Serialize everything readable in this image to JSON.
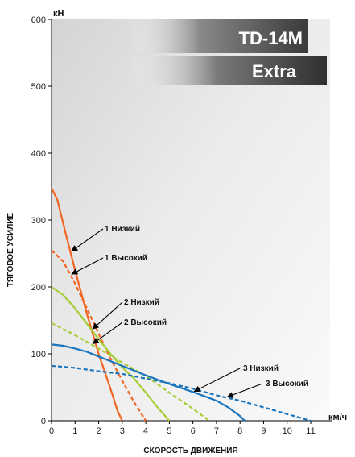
{
  "chart_data": {
    "type": "line",
    "title": "",
    "brand_lines": [
      "TD-14M",
      "Extra"
    ],
    "xlabel": "СКОРОСТЬ ДВИЖЕНИЯ",
    "ylabel": "ТЯГОВОЕ УСИЛИЕ",
    "x_unit": "км/ч",
    "y_unit": "кН",
    "xlim": [
      0,
      11
    ],
    "ylim": [
      0,
      600
    ],
    "x_ticks": [
      0,
      1,
      2,
      3,
      4,
      5,
      6,
      7,
      8,
      9,
      10,
      11
    ],
    "y_ticks": [
      0,
      100,
      200,
      300,
      400,
      500,
      600
    ],
    "grid": false,
    "series": [
      {
        "name": "1 Низкий",
        "color": "#f26522",
        "dashed": false,
        "x": [
          0,
          0.25,
          0.6,
          1.0,
          1.5,
          2.0,
          2.5,
          2.8,
          3.0
        ],
        "y": [
          348,
          330,
          280,
          225,
          160,
          100,
          48,
          15,
          0
        ]
      },
      {
        "name": "1 Высокий",
        "color": "#f26522",
        "dashed": true,
        "x": [
          0,
          0.5,
          1.0,
          1.5,
          2.0,
          2.5,
          3.0,
          3.5,
          4.0
        ],
        "y": [
          255,
          238,
          205,
          168,
          130,
          93,
          60,
          28,
          0
        ]
      },
      {
        "name": "2 Низкий",
        "color": "#a6ce39",
        "dashed": false,
        "x": [
          0,
          0.5,
          1.0,
          1.5,
          2.0,
          2.5,
          3.0,
          3.5,
          4.0,
          4.5,
          5.0
        ],
        "y": [
          200,
          188,
          168,
          145,
          122,
          100,
          80,
          63,
          42,
          20,
          0
        ]
      },
      {
        "name": "2 Высокий",
        "color": "#a6ce39",
        "dashed": true,
        "x": [
          0,
          1.0,
          2.0,
          3.0,
          4.0,
          5.0,
          6.0,
          6.7
        ],
        "y": [
          146,
          128,
          108,
          87,
          67,
          42,
          18,
          0
        ]
      },
      {
        "name": "3 Низкий",
        "color": "#1b75bc",
        "dashed": false,
        "x": [
          0,
          0.5,
          1.0,
          1.5,
          2.0,
          3.0,
          4.0,
          5.0,
          6.0,
          7.0,
          7.5,
          8.0,
          8.2
        ],
        "y": [
          114,
          112,
          108,
          103,
          96,
          82,
          68,
          55,
          43,
          30,
          20,
          7,
          0
        ]
      },
      {
        "name": "3 Высокий",
        "color": "#1b75bc",
        "dashed": true,
        "x": [
          0,
          1.0,
          2.0,
          3.0,
          4.0,
          5.0,
          6.0,
          7.0,
          8.0,
          9.0,
          10.0,
          10.5,
          11.0
        ],
        "y": [
          82,
          79,
          74,
          70,
          63,
          56,
          48,
          38,
          30,
          20,
          10,
          5,
          0
        ]
      }
    ],
    "annotations": [
      {
        "text": "1 Низкий",
        "series": 0,
        "at_x": 0.8
      },
      {
        "text": "1 Высокий",
        "series": 1,
        "at_x": 0.8
      },
      {
        "text": "2 Низкий",
        "series": 2,
        "at_x": 1.7
      },
      {
        "text": "2 Высокий",
        "series": 3,
        "at_x": 1.7
      },
      {
        "text": "3 Низкий",
        "series": 4,
        "at_x": 6.0
      },
      {
        "text": "3 Высокий",
        "series": 5,
        "at_x": 7.4
      }
    ]
  }
}
